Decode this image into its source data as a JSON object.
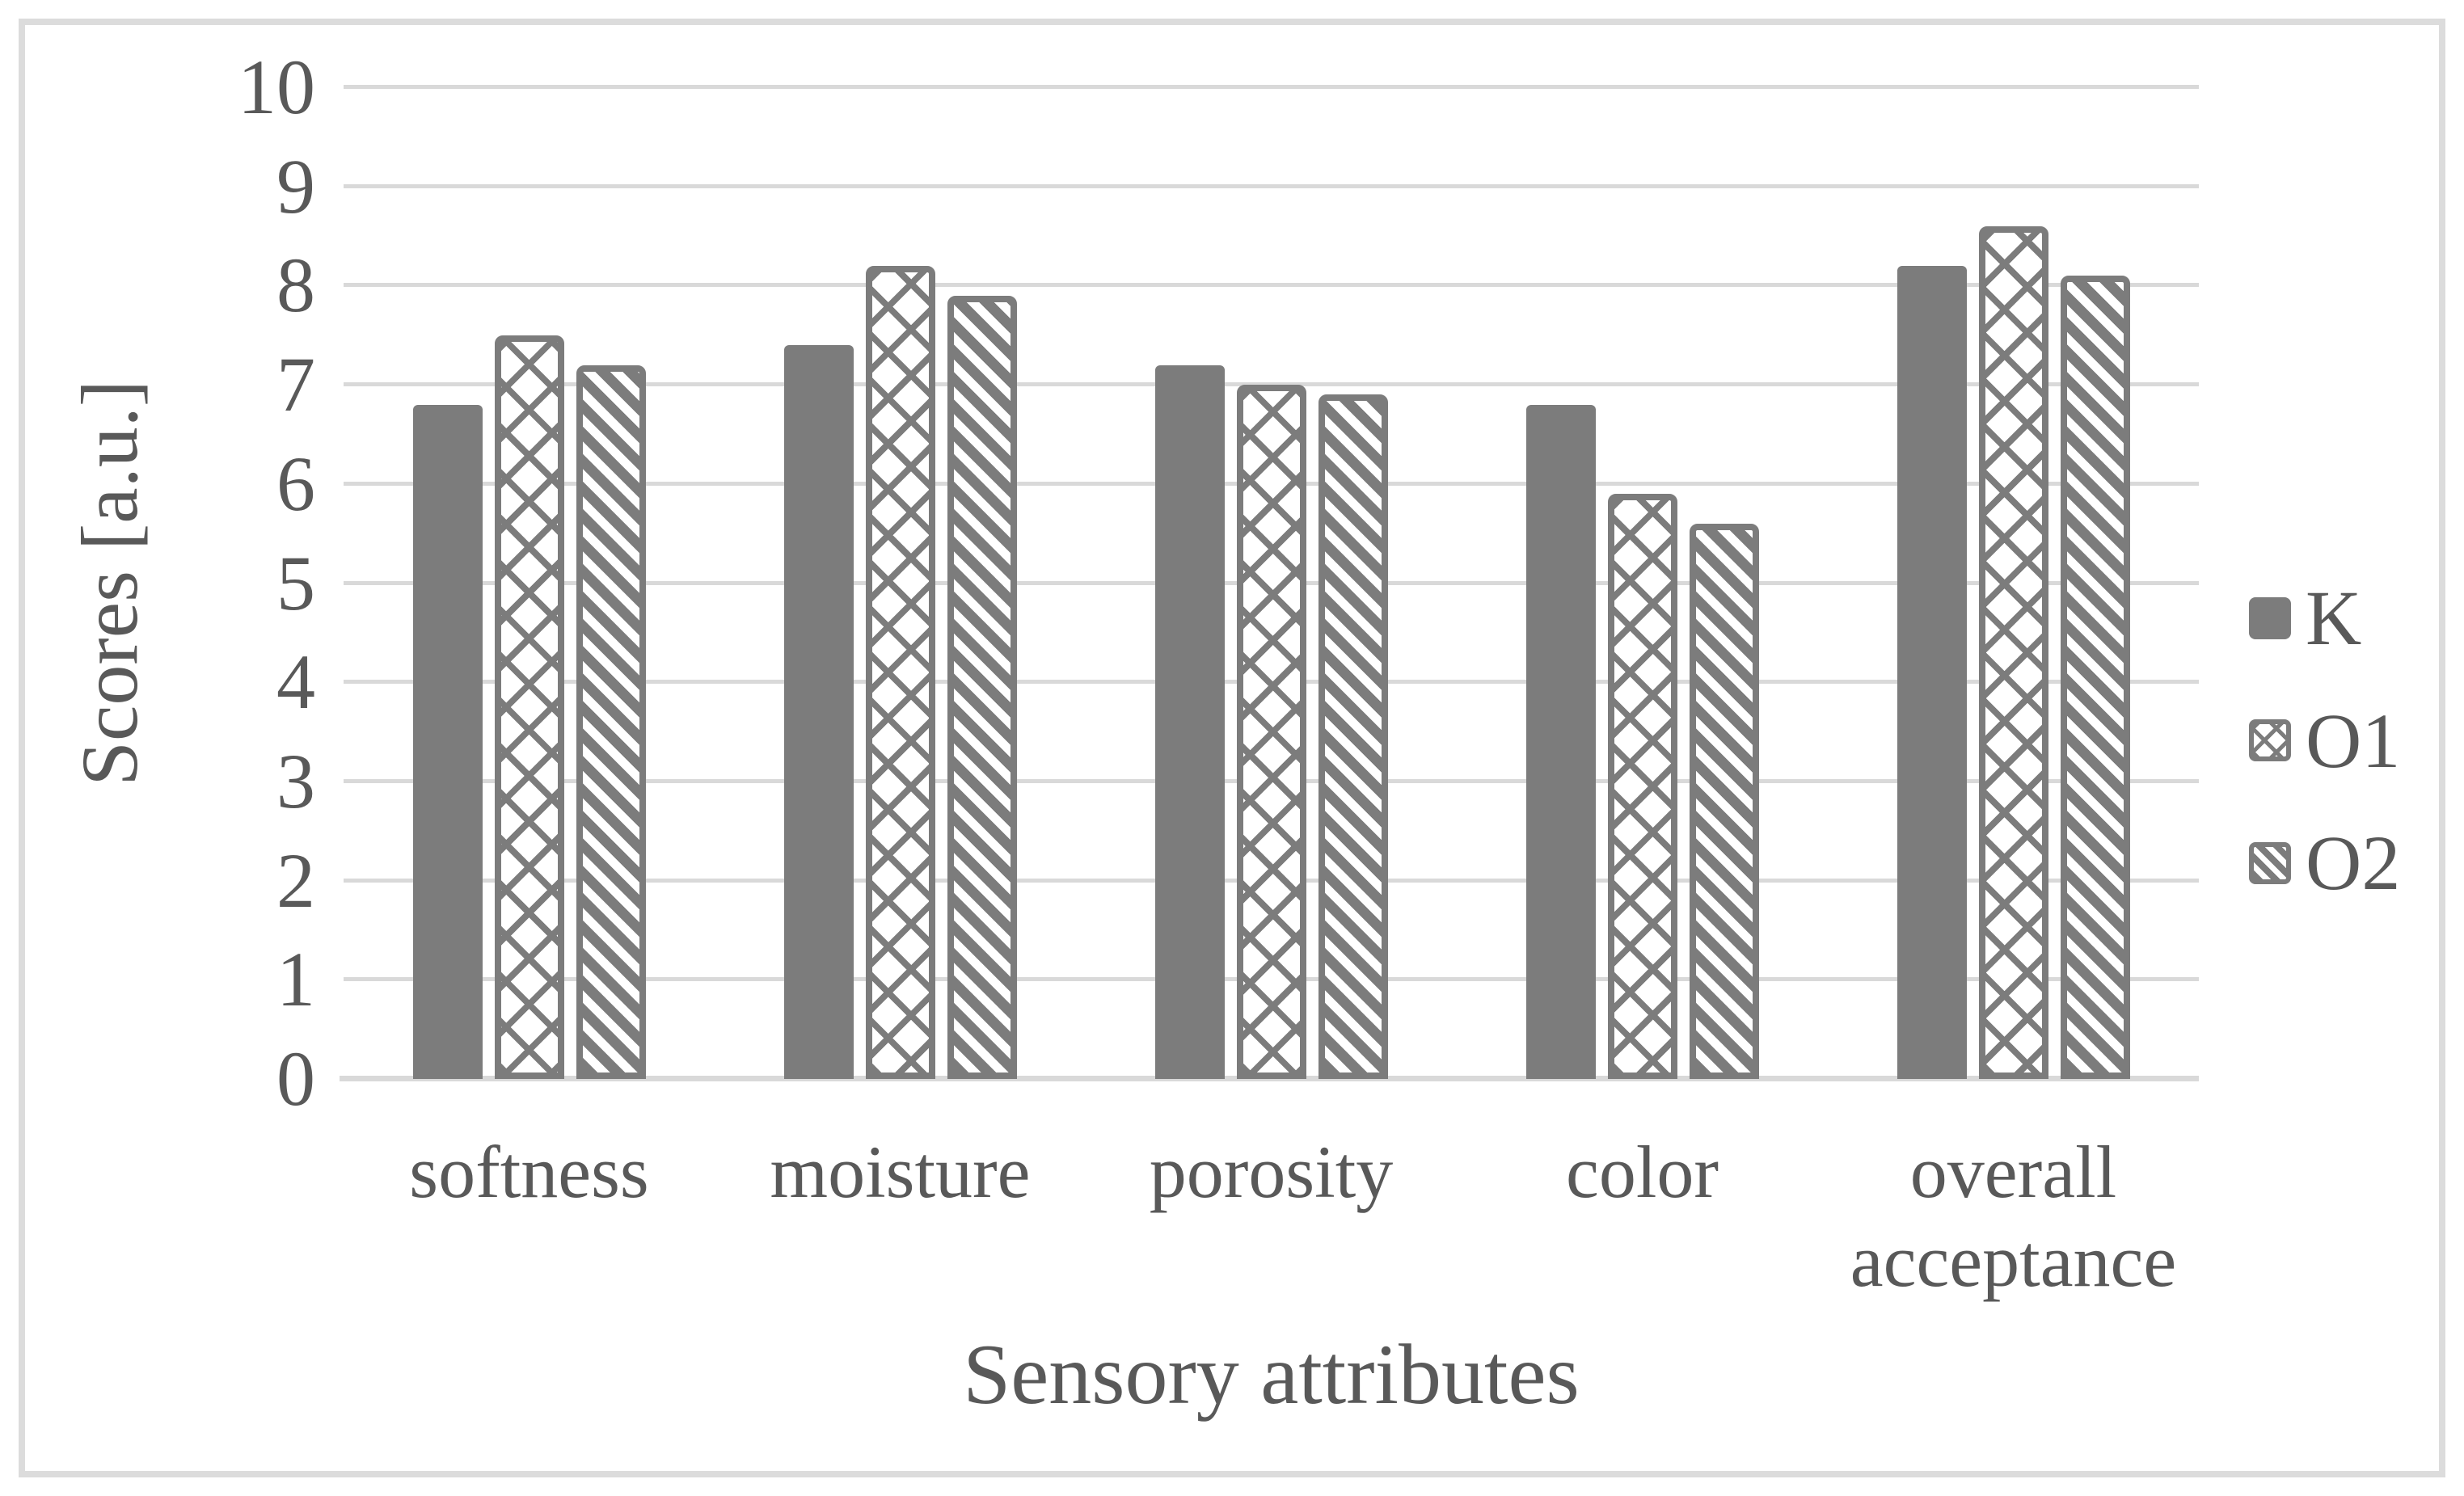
{
  "figure": {
    "background": "#ffffff",
    "frame_border_color": "#dcdcdc"
  },
  "chart_data": {
    "type": "bar",
    "title": "",
    "xlabel": "Sensory attributes",
    "ylabel": "Scores [a.u.]",
    "categories": [
      "softness",
      "moisture",
      "porosity",
      "color",
      "overall acceptance"
    ],
    "series": [
      {
        "name": "K",
        "pattern": "solid",
        "values": [
          6.8,
          7.4,
          7.2,
          6.8,
          8.2
        ]
      },
      {
        "name": "O1",
        "pattern": "crosshatch",
        "values": [
          7.5,
          8.2,
          7.0,
          5.9,
          8.6
        ]
      },
      {
        "name": "O2",
        "pattern": "stripes",
        "values": [
          7.2,
          7.9,
          6.9,
          5.6,
          8.1
        ]
      }
    ],
    "ylim": [
      0,
      10
    ],
    "ytick_step": 1,
    "grid": "horizontal",
    "legend_position": "right",
    "colors": {
      "bar_gray": "#7c7c7c",
      "pattern_background": "#ffffff",
      "gridline": "#d9d9d9",
      "text": "#595959"
    }
  }
}
